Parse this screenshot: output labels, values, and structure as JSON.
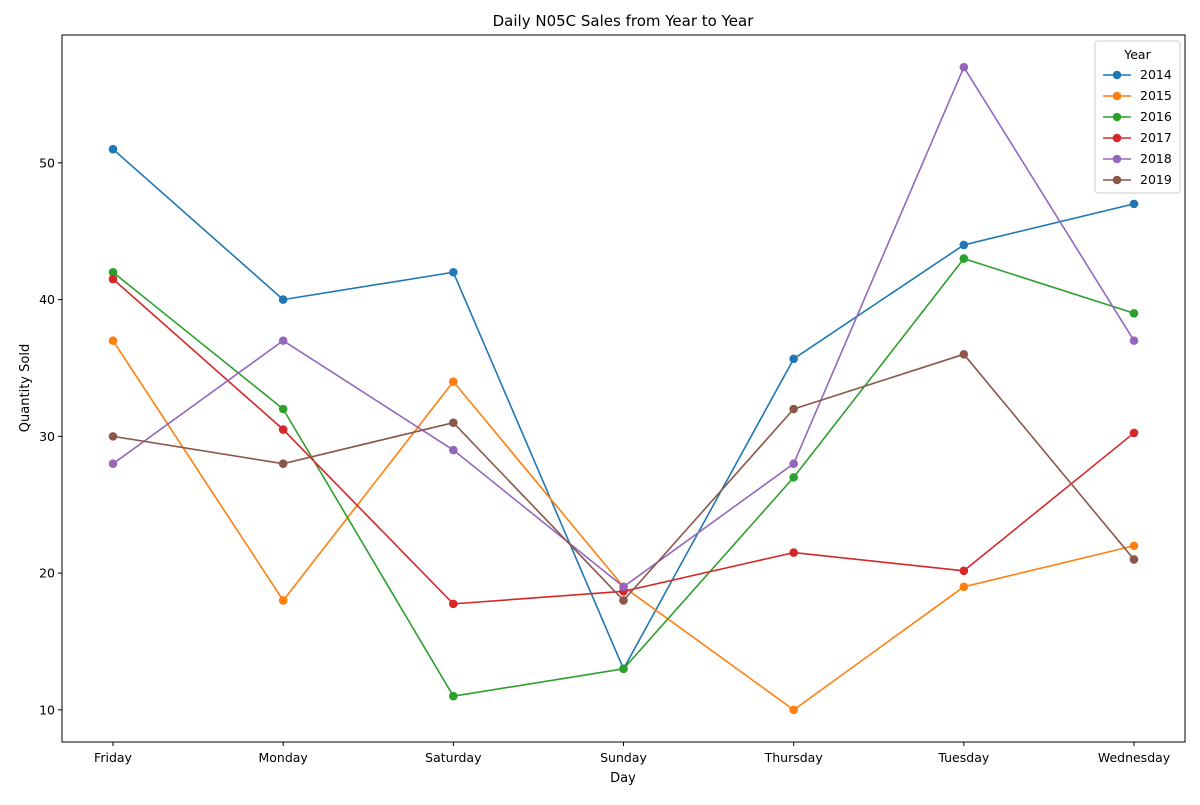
{
  "chart_data": {
    "type": "line",
    "title": "Daily N05C Sales from Year to Year",
    "xlabel": "Day",
    "ylabel": "Quantity Sold",
    "categories": [
      "Friday",
      "Monday",
      "Saturday",
      "Sunday",
      "Thursday",
      "Tuesday",
      "Wednesday"
    ],
    "ylim": [
      7.65,
      59.35
    ],
    "yticks": [
      10,
      20,
      30,
      40,
      50
    ],
    "grid": false,
    "legend": {
      "title": "Year",
      "placement": "top-right"
    },
    "markers": "circle",
    "series": [
      {
        "name": "2014",
        "color": "#1f77b4",
        "values": [
          51,
          40,
          42,
          13,
          35.67,
          44,
          47
        ]
      },
      {
        "name": "2015",
        "color": "#ff7f0e",
        "values": [
          37,
          18,
          34,
          19,
          10,
          19,
          22
        ]
      },
      {
        "name": "2016",
        "color": "#2ca02c",
        "values": [
          42,
          32,
          11,
          13,
          27,
          43,
          39
        ]
      },
      {
        "name": "2017",
        "color": "#d62728",
        "values": [
          41.5,
          30.5,
          17.75,
          18.67,
          21.5,
          20.17,
          30.25
        ]
      },
      {
        "name": "2018",
        "color": "#9467bd",
        "values": [
          28,
          37,
          29,
          19,
          28,
          57,
          37
        ]
      },
      {
        "name": "2019",
        "color": "#8c564b",
        "values": [
          30,
          28,
          31,
          18,
          32,
          36,
          21
        ]
      }
    ]
  }
}
